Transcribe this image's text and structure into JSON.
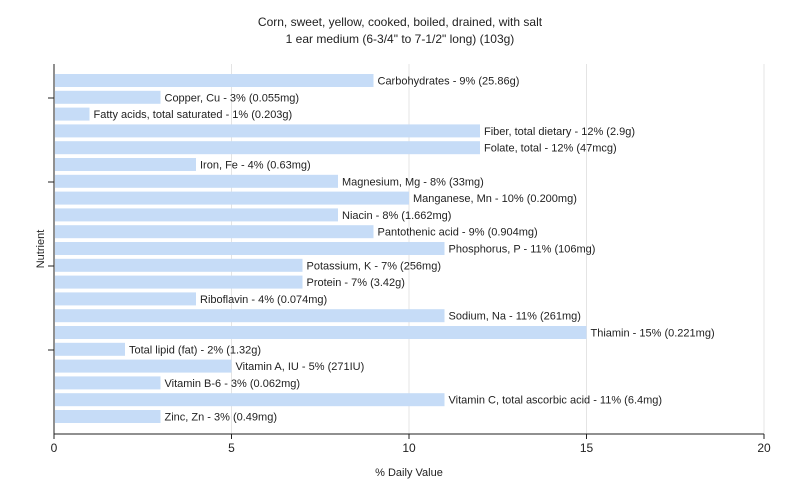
{
  "chart_data": {
    "type": "bar",
    "orientation": "horizontal",
    "title": "Corn, sweet, yellow, cooked, boiled, drained, with salt",
    "subtitle": "1 ear medium (6-3/4\" to 7-1/2\" long) (103g)",
    "xlabel": "% Daily Value",
    "ylabel": "Nutrient",
    "xlim": [
      0,
      20
    ],
    "xticks": [
      "0",
      "5",
      "10",
      "15",
      "20"
    ],
    "grid": true,
    "bar_color": "#c6dcf7",
    "categories": [
      "Carbohydrates",
      "Copper, Cu",
      "Fatty acids, total saturated",
      "Fiber, total dietary",
      "Folate, total",
      "Iron, Fe",
      "Magnesium, Mg",
      "Manganese, Mn",
      "Niacin",
      "Pantothenic acid",
      "Phosphorus, P",
      "Potassium, K",
      "Protein",
      "Riboflavin",
      "Sodium, Na",
      "Thiamin",
      "Total lipid (fat)",
      "Vitamin A, IU",
      "Vitamin B-6",
      "Vitamin C, total ascorbic acid",
      "Zinc, Zn"
    ],
    "values": [
      9,
      3,
      1,
      12,
      12,
      4,
      8,
      10,
      8,
      9,
      11,
      7,
      7,
      4,
      11,
      15,
      2,
      5,
      3,
      11,
      3
    ],
    "labels": [
      "Carbohydrates - 9% (25.86g)",
      "Copper, Cu - 3% (0.055mg)",
      "Fatty acids, total saturated - 1% (0.203g)",
      "Fiber, total dietary - 12% (2.9g)",
      "Folate, total - 12% (47mcg)",
      "Iron, Fe - 4% (0.63mg)",
      "Magnesium, Mg - 8% (33mg)",
      "Manganese, Mn - 10% (0.200mg)",
      "Niacin - 8% (1.662mg)",
      "Pantothenic acid - 9% (0.904mg)",
      "Phosphorus, P - 11% (106mg)",
      "Potassium, K - 7% (256mg)",
      "Protein - 7% (3.42g)",
      "Riboflavin - 4% (0.074mg)",
      "Sodium, Na - 11% (261mg)",
      "Thiamin - 15% (0.221mg)",
      "Total lipid (fat) - 2% (1.32g)",
      "Vitamin A, IU - 5% (271IU)",
      "Vitamin B-6 - 3% (0.062mg)",
      "Vitamin C, total ascorbic acid - 11% (6.4mg)",
      "Zinc, Zn - 3% (0.49mg)"
    ]
  }
}
